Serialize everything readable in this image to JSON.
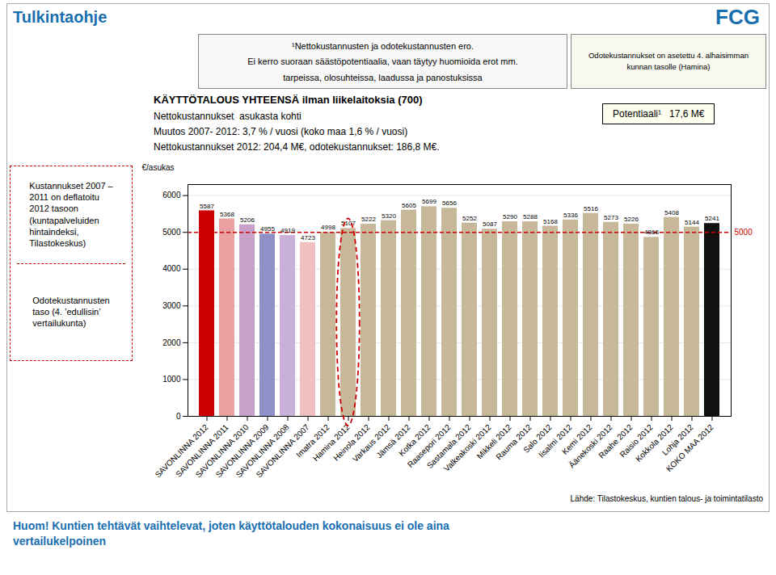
{
  "chart_data": {
    "type": "bar",
    "title": "KÄYTTÖTALOUS YHTEENSÄ ilman liikelaitoksia (700)",
    "subtitle": [
      "Nettokustannukset  asukasta kohti",
      "Muutos 2007- 2012: 3,7 % / vuosi (koko maa 1,6 % / vuosi)",
      "Nettokustannukset 2012: 204,4 M€, odotekustannukset: 186,8 M€."
    ],
    "categories": [
      "SAVONLINNA 2012",
      "SAVONLINNA 2011",
      "SAVONLINNA 2010",
      "SAVONLINNA 2009",
      "SAVONLINNA 2008",
      "SAVONLINNA 2007",
      "Imatra 2012",
      "Hamina 2012",
      "Heinola 2012",
      "Varkaus 2012",
      "Jämsä 2012",
      "Kotka 2012",
      "Raasepori 2012",
      "Sastamala 2012",
      "Valkeakoski 2012",
      "Mikkeli 2012",
      "Rauma 2012",
      "Salo 2012",
      "Iisalmi 2012",
      "Kemi 2012",
      "Äänekoski 2012",
      "Raahe 2012",
      "Raisio 2012",
      "Kokkola 2012",
      "Lohja 2012",
      "KOKO MAA 2012"
    ],
    "values": [
      5587,
      5368,
      5206,
      4955,
      4919,
      4723,
      4998,
      5107,
      5222,
      5320,
      5605,
      5699,
      5656,
      5252,
      5087,
      5290,
      5288,
      5168,
      5336,
      5516,
      5273,
      5226,
      4866,
      5408,
      5144,
      5241
    ],
    "colors": [
      "#cc0000",
      "#e8a0a0",
      "#c8a0c8",
      "#9090c8",
      "#c8b0d8",
      "#f0c0c0",
      "#c8b89a",
      "#c8b89a",
      "#c8b89a",
      "#c8b89a",
      "#c8b89a",
      "#c8b89a",
      "#c8b89a",
      "#c8b89a",
      "#c8b89a",
      "#c8b89a",
      "#c8b89a",
      "#c8b89a",
      "#c8b89a",
      "#c8b89a",
      "#c8b89a",
      "#c8b89a",
      "#c8b89a",
      "#c8b89a",
      "#c8b89a",
      "#111111"
    ],
    "ylabel": "€/asukas",
    "ylim": [
      0,
      6300
    ],
    "yticks": [
      0,
      1000,
      2000,
      3000,
      4000,
      5000,
      6000
    ],
    "grid": true,
    "data_labels": true,
    "reference_line": {
      "value": 5000,
      "label": "5000",
      "color": "#cc0000"
    },
    "highlight": {
      "category": "Hamina 2012",
      "color": "#cc0000"
    },
    "annotations": {
      "header": {
        "text": "Tulkintaohje",
        "color": "#1a6faf"
      },
      "logo": {
        "text": "FCG",
        "color": "#1a6faf"
      },
      "info_box": [
        "¹Nettokustannusten ja odotekustannusten ero.",
        "Ei kerro suoraan säästöpotentiaalia, vaan täytyy huomioida erot mm.",
        "tarpeissa, olosuhteissa, laadussa ja panostuksissa"
      ],
      "side_box": "Odotekustannukset on asetettu 4. alhaisimman\nkunnan tasolle (Hamina)",
      "left_box": {
        "top": "Kustannukset 2007 –\n2011 on deflatoitu\n2012 tasoon\n(kuntapalveluiden\nhintaindeksi,\nTilastokeskus)",
        "bottom": "Odotekustannusten\ntaso (4. ’edullisin’\nvertailukunta)",
        "color": "#cc0000"
      },
      "potential": "Potentiaali¹   17,6 M€",
      "source": "Lähde: Tilastokeskus, kuntien talous- ja toimintatilasto",
      "footer": {
        "text": "Huom! Kuntien tehtävät vaihtelevat, joten käyttötalouden kokonaisuus ei ole aina\nvertailukelpoinen",
        "color": "#1a6faf"
      }
    }
  }
}
